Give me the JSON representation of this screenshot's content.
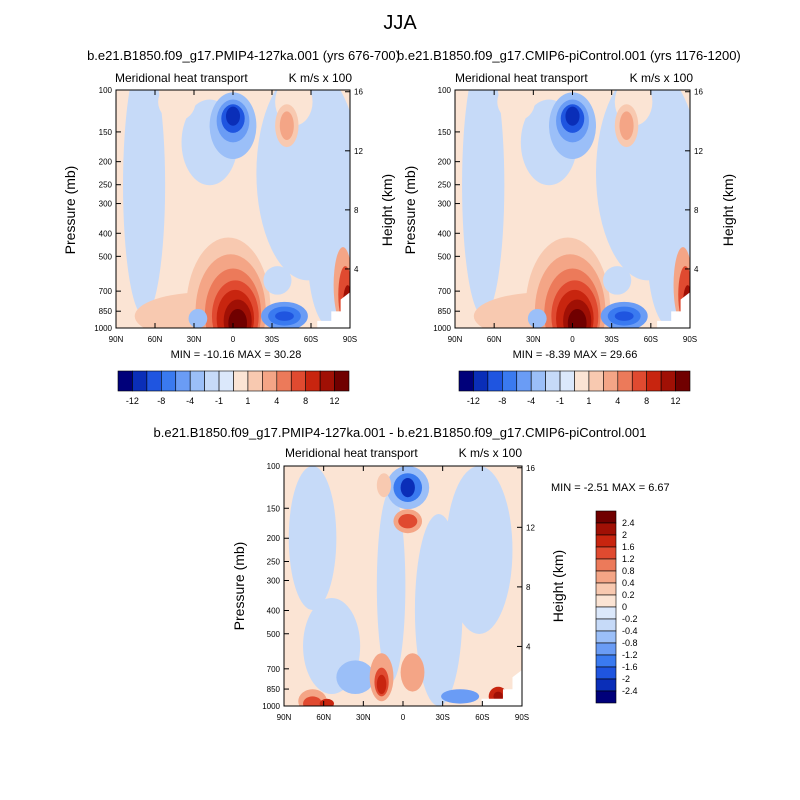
{
  "figure": {
    "title": "JJA"
  },
  "colors": {
    "scale": [
      "#00007a",
      "#0a2eb8",
      "#1f55e0",
      "#3a7af0",
      "#6a9cf5",
      "#9bbff8",
      "#c6daf8",
      "#dbe8fb",
      "#fbe4d4",
      "#f8c9b0",
      "#f4a586",
      "#ec7a5a",
      "#e04a30",
      "#c8250f",
      "#a01005",
      "#700000"
    ]
  },
  "panels": [
    {
      "id": "pmip4",
      "title": "b.e21.B1850.f09_g17.PMIP4-127ka.001 (yrs 676-700)",
      "left_label": "Meridional heat transport",
      "right_label": "K m/s x 100",
      "ylabel": "Pressure (mb)",
      "y2label": "Height (km)",
      "stats": "MIN = -10.16  MAX = 30.28"
    },
    {
      "id": "picontrol",
      "title": "b.e21.B1850.f09_g17.CMIP6-piControl.001 (yrs 1176-1200)",
      "left_label": "Meridional heat transport",
      "right_label": "K m/s x 100",
      "ylabel": "Pressure (mb)",
      "y2label": "Height (km)",
      "stats": "MIN = -8.39  MAX = 29.66"
    },
    {
      "id": "difference",
      "title": "b.e21.B1850.f09_g17.PMIP4-127ka.001 - b.e21.B1850.f09_g17.CMIP6-piControl.001",
      "left_label": "Meridional heat transport",
      "right_label": "K m/s x 100",
      "ylabel": "Pressure (mb)",
      "y2label": "Height (km)",
      "stats": "MIN =  -2.51  MAX =   6.67"
    }
  ],
  "chart_data": [
    {
      "type": "heatmap",
      "title": "b.e21.B1850.f09_g17.PMIP4-127ka.001 (yrs 676-700)",
      "xlabel": "",
      "ylabel": "Pressure (mb)",
      "y2label": "Height (km)",
      "x_ticks": [
        "90N",
        "60N",
        "30N",
        "0",
        "30S",
        "60S",
        "90S"
      ],
      "y_ticks": [
        100,
        150,
        200,
        250,
        300,
        400,
        500,
        700,
        850,
        1000
      ],
      "y2_ticks": [
        16,
        12,
        8,
        4
      ],
      "ylim": [
        1000,
        100
      ],
      "colorbar": {
        "levels": [
          -12,
          -10,
          -8,
          -6,
          -4,
          -2,
          -1,
          -0.5,
          0.5,
          1,
          2,
          4,
          6,
          8,
          10,
          12
        ],
        "tick_labels": [
          "-12",
          "-8",
          "-4",
          "-1",
          "1",
          "4",
          "8",
          "12"
        ]
      },
      "min": -10.16,
      "max": 30.28
    },
    {
      "type": "heatmap",
      "title": "b.e21.B1850.f09_g17.CMIP6-piControl.001 (yrs 1176-1200)",
      "xlabel": "",
      "ylabel": "Pressure (mb)",
      "y2label": "Height (km)",
      "x_ticks": [
        "90N",
        "60N",
        "30N",
        "0",
        "30S",
        "60S",
        "90S"
      ],
      "y_ticks": [
        100,
        150,
        200,
        250,
        300,
        400,
        500,
        700,
        850,
        1000
      ],
      "y2_ticks": [
        16,
        12,
        8,
        4
      ],
      "ylim": [
        1000,
        100
      ],
      "colorbar": {
        "levels": [
          -12,
          -10,
          -8,
          -6,
          -4,
          -2,
          -1,
          -0.5,
          0.5,
          1,
          2,
          4,
          6,
          8,
          10,
          12
        ],
        "tick_labels": [
          "-12",
          "-8",
          "-4",
          "-1",
          "1",
          "4",
          "8",
          "12"
        ]
      },
      "min": -8.39,
      "max": 29.66
    },
    {
      "type": "heatmap",
      "title": "b.e21.B1850.f09_g17.PMIP4-127ka.001 - b.e21.B1850.f09_g17.CMIP6-piControl.001",
      "xlabel": "",
      "ylabel": "Pressure (mb)",
      "y2label": "Height (km)",
      "x_ticks": [
        "90N",
        "60N",
        "30N",
        "0",
        "30S",
        "60S",
        "90S"
      ],
      "y_ticks": [
        100,
        150,
        200,
        250,
        300,
        400,
        500,
        700,
        850,
        1000
      ],
      "y2_ticks": [
        16,
        12,
        8,
        4
      ],
      "ylim": [
        1000,
        100
      ],
      "colorbar": {
        "levels": [
          2.4,
          2,
          1.6,
          1.2,
          0.8,
          0.4,
          0.2,
          0,
          -0.2,
          -0.4,
          -0.8,
          -1.2,
          -1.6,
          -2,
          -2.4
        ],
        "tick_labels": [
          "2.4",
          "2",
          "1.6",
          "1.2",
          "0.8",
          "0.4",
          "0.2",
          "0",
          "-0.2",
          "-0.4",
          "-0.8",
          "-1.2",
          "-1.6",
          "-2",
          "-2.4"
        ]
      },
      "min": -2.51,
      "max": 6.67
    }
  ]
}
